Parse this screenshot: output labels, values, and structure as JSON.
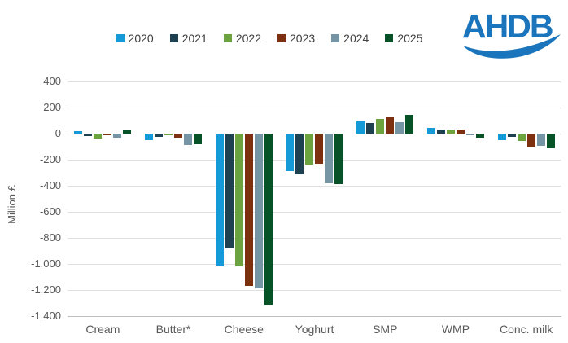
{
  "logo": {
    "text": "AHDB",
    "color": "#1b75bc"
  },
  "chart_data": {
    "type": "bar",
    "title": "",
    "xlabel": "",
    "ylabel": "Million £",
    "unit": "Million £",
    "grid": true,
    "legend_position": "top",
    "ylim": [
      -1400,
      400
    ],
    "ytick_step": 200,
    "ytick_labels": [
      "400",
      "200",
      "0",
      "-200",
      "-400",
      "-600",
      "-800",
      "-1,000",
      "-1,200",
      "-1,400"
    ],
    "categories": [
      "Cream",
      "Butter*",
      "Cheese",
      "Yoghurt",
      "SMP",
      "WMP",
      "Conc. milk"
    ],
    "series": [
      {
        "name": "2020",
        "color": "#149bd7",
        "values": [
          20,
          -50,
          -1020,
          -290,
          95,
          45,
          -50
        ]
      },
      {
        "name": "2021",
        "color": "#1e4152",
        "values": [
          -20,
          -25,
          -880,
          -310,
          80,
          30,
          -25
        ]
      },
      {
        "name": "2022",
        "color": "#6da33f",
        "values": [
          -40,
          -15,
          -1020,
          -240,
          115,
          30,
          -55
        ]
      },
      {
        "name": "2023",
        "color": "#7c300f",
        "values": [
          -10,
          -30,
          -1170,
          -230,
          125,
          30,
          -100
        ]
      },
      {
        "name": "2024",
        "color": "#7695a4",
        "values": [
          -30,
          -90,
          -1190,
          -380,
          85,
          -15,
          -95
        ]
      },
      {
        "name": "2025",
        "color": "#075226",
        "values": [
          25,
          -80,
          -1310,
          -390,
          145,
          -30,
          -110
        ]
      }
    ]
  }
}
